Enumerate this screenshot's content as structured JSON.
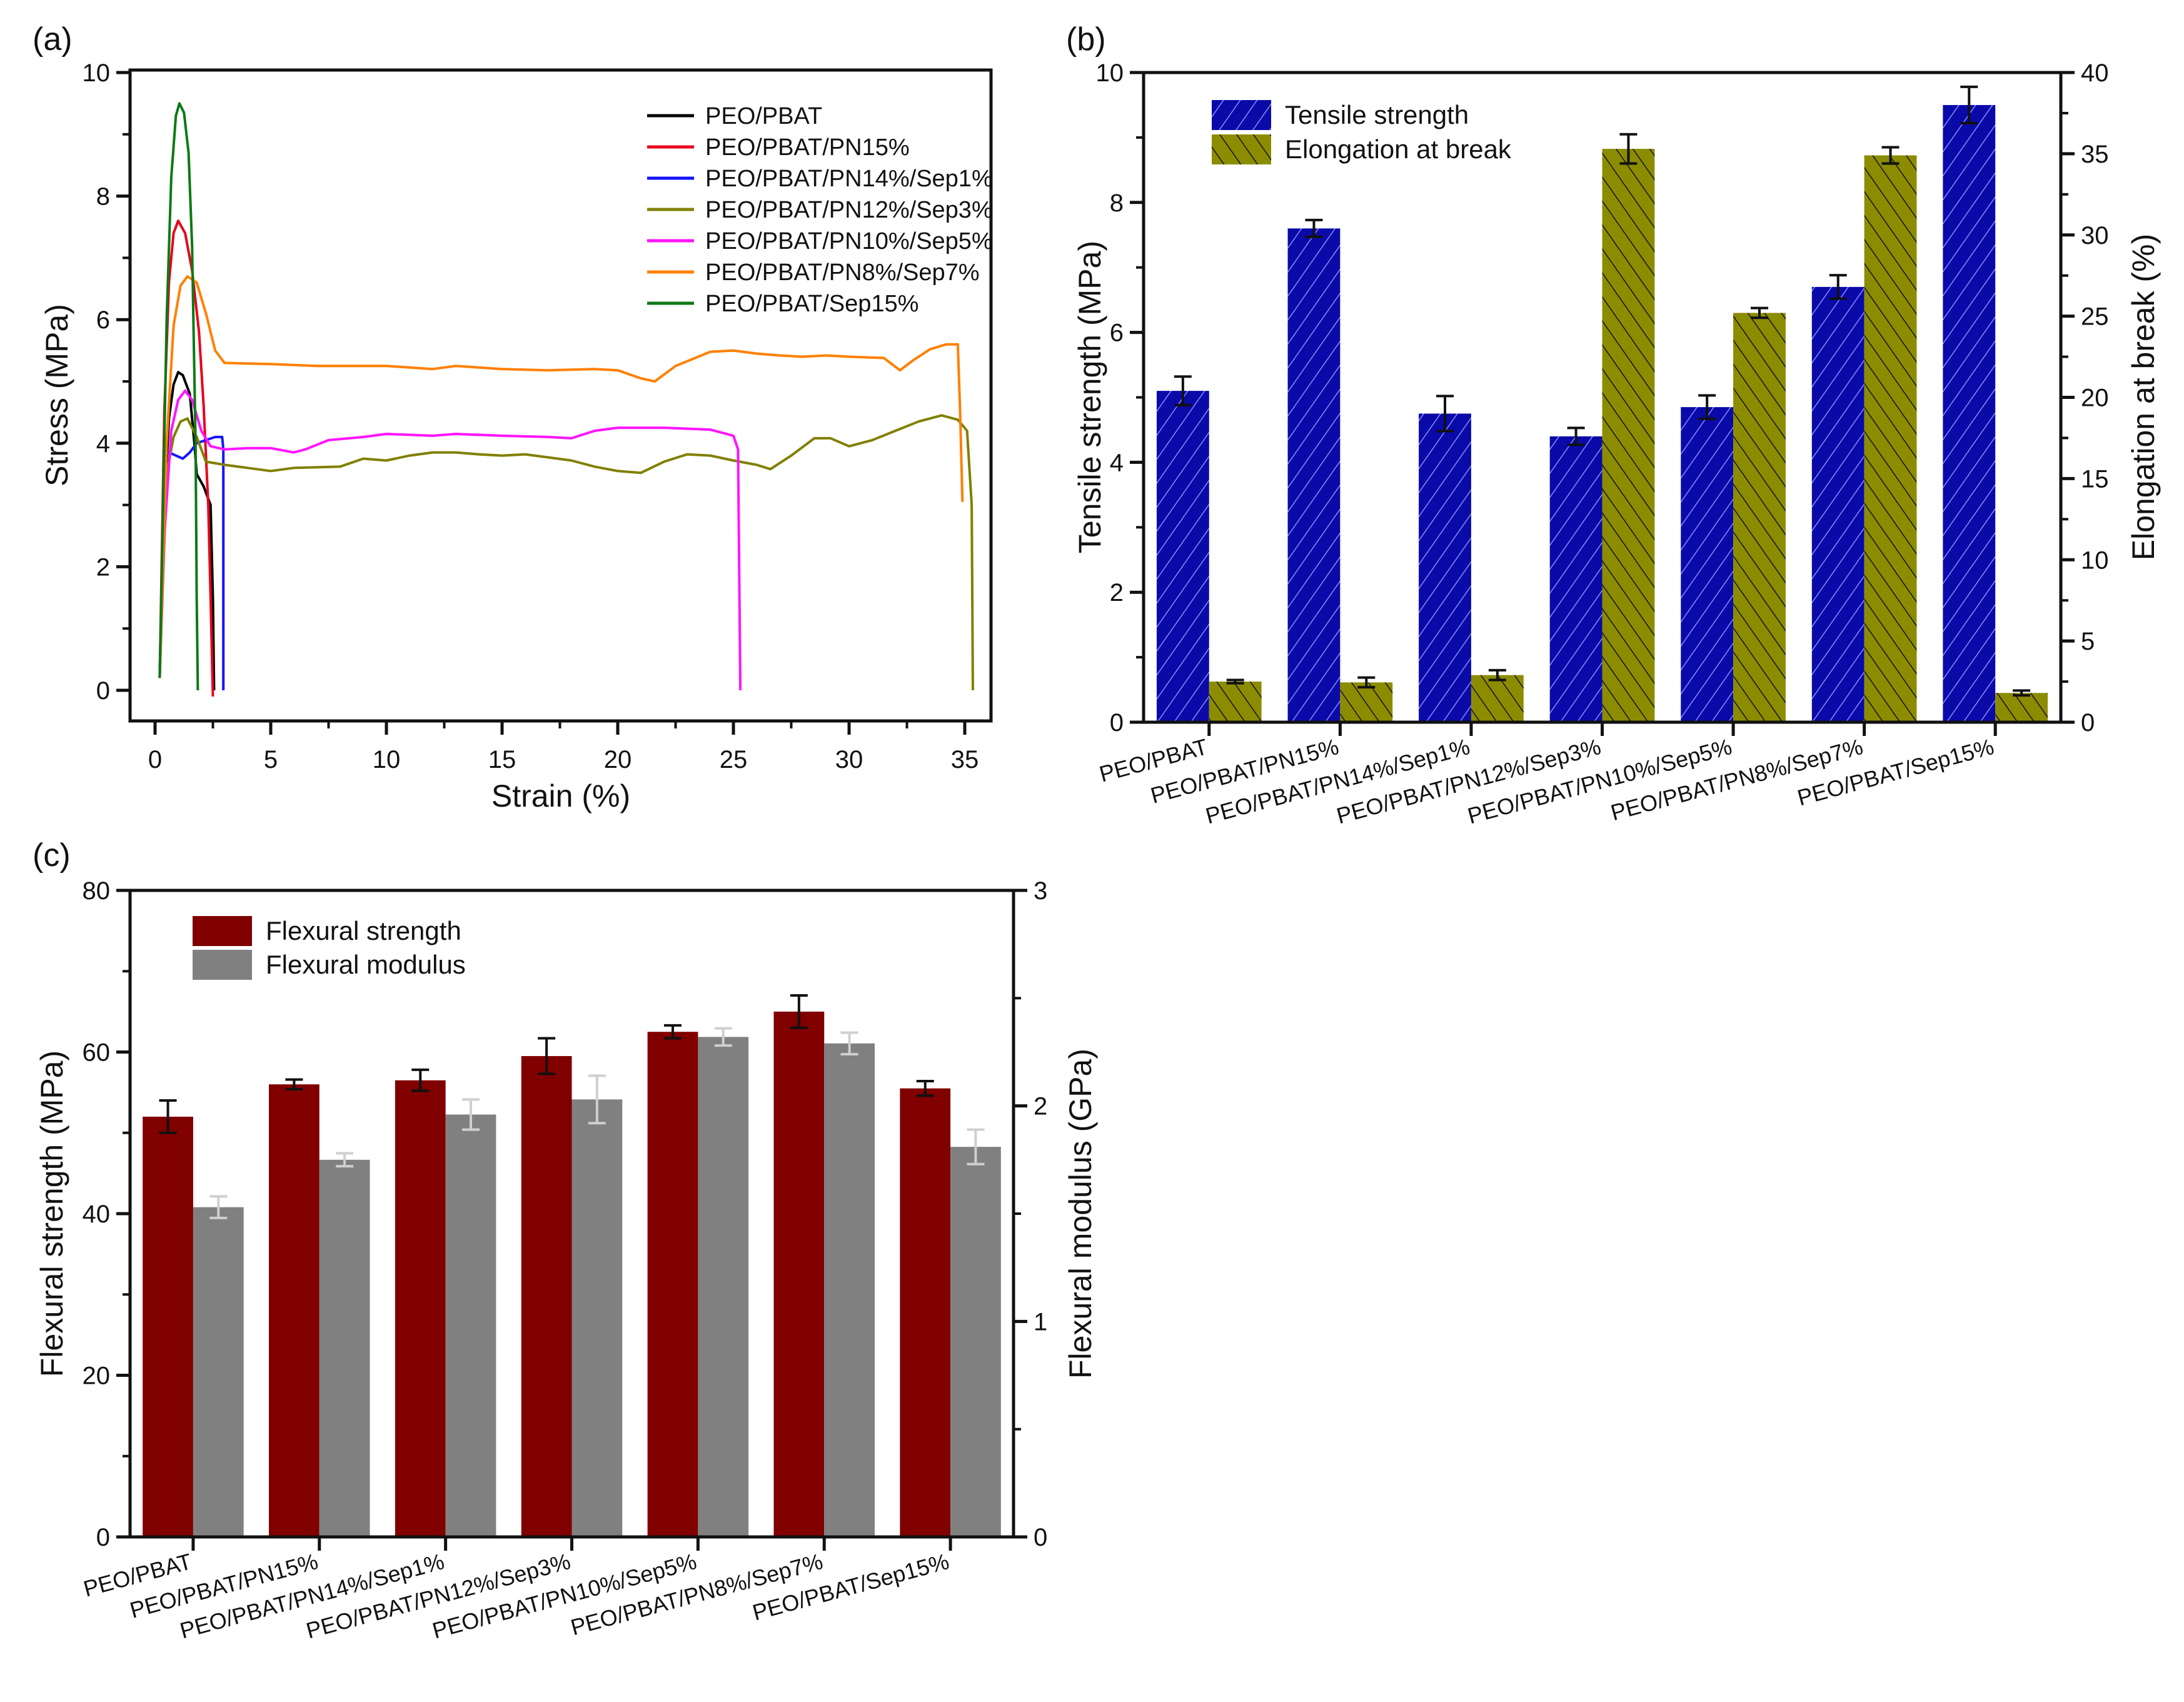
{
  "chart_data": [
    {
      "panel": "(a)",
      "type": "line",
      "title": "",
      "xlabel": "Strain (%)",
      "ylabel": "Stress (MPa)",
      "xlim": [
        -1,
        36
      ],
      "ylim": [
        -0.4,
        10
      ],
      "xticks": [
        "0",
        "5",
        "10",
        "15",
        "20",
        "25",
        "30",
        "35"
      ],
      "yticks": [
        "0",
        "2",
        "4",
        "6",
        "8",
        "10"
      ],
      "legend_position": "top-right",
      "series": [
        {
          "name": "PEO/PBAT",
          "color": "#000000",
          "points": [
            [
              0.2,
              0.2
            ],
            [
              0.4,
              3.0
            ],
            [
              0.6,
              4.4
            ],
            [
              0.8,
              4.95
            ],
            [
              1.0,
              5.15
            ],
            [
              1.2,
              5.1
            ],
            [
              1.5,
              4.8
            ],
            [
              1.7,
              4.0
            ],
            [
              1.8,
              3.5
            ],
            [
              2.1,
              3.3
            ],
            [
              2.4,
              3.0
            ],
            [
              2.5,
              1.5
            ],
            [
              2.55,
              0
            ]
          ]
        },
        {
          "name": "PEO/PBAT/PN15%",
          "color": "#e8001c",
          "points": [
            [
              0.2,
              0.2
            ],
            [
              0.4,
              4.5
            ],
            [
              0.6,
              6.6
            ],
            [
              0.8,
              7.4
            ],
            [
              1.0,
              7.6
            ],
            [
              1.3,
              7.4
            ],
            [
              1.6,
              6.8
            ],
            [
              1.9,
              5.8
            ],
            [
              2.1,
              4.6
            ],
            [
              2.3,
              3.0
            ],
            [
              2.4,
              1.5
            ],
            [
              2.5,
              -0.1
            ]
          ]
        },
        {
          "name": "PEO/PBAT/PN14%/Sep1%",
          "color": "#1414ff",
          "points": [
            [
              0.2,
              0.2
            ],
            [
              0.3,
              2.0
            ],
            [
              0.4,
              3.8
            ],
            [
              0.6,
              3.85
            ],
            [
              0.9,
              3.8
            ],
            [
              1.2,
              3.75
            ],
            [
              1.5,
              3.85
            ],
            [
              1.8,
              4.0
            ],
            [
              2.2,
              4.05
            ],
            [
              2.6,
              4.1
            ],
            [
              2.9,
              4.1
            ],
            [
              2.95,
              3.9
            ],
            [
              2.95,
              0
            ]
          ]
        },
        {
          "name": "PEO/PBAT/PN12%/Sep3%",
          "color": "#808000",
          "points": [
            [
              0.2,
              0.2
            ],
            [
              0.5,
              3.5
            ],
            [
              0.8,
              4.1
            ],
            [
              1.1,
              4.35
            ],
            [
              1.4,
              4.4
            ],
            [
              1.8,
              4.1
            ],
            [
              2.2,
              3.7
            ],
            [
              3,
              3.65
            ],
            [
              4,
              3.6
            ],
            [
              5,
              3.55
            ],
            [
              6,
              3.6
            ],
            [
              8,
              3.62
            ],
            [
              9,
              3.75
            ],
            [
              10,
              3.72
            ],
            [
              11,
              3.8
            ],
            [
              12,
              3.85
            ],
            [
              13,
              3.85
            ],
            [
              14,
              3.82
            ],
            [
              15,
              3.8
            ],
            [
              16,
              3.82
            ],
            [
              18,
              3.72
            ],
            [
              19,
              3.62
            ],
            [
              20,
              3.55
            ],
            [
              21,
              3.52
            ],
            [
              22,
              3.7
            ],
            [
              23,
              3.82
            ],
            [
              24,
              3.8
            ],
            [
              25,
              3.72
            ],
            [
              26,
              3.65
            ],
            [
              26.6,
              3.58
            ],
            [
              27.5,
              3.8
            ],
            [
              28.5,
              4.08
            ],
            [
              29.2,
              4.08
            ],
            [
              30,
              3.95
            ],
            [
              31,
              4.05
            ],
            [
              32,
              4.2
            ],
            [
              33,
              4.35
            ],
            [
              34,
              4.45
            ],
            [
              34.7,
              4.38
            ],
            [
              35.1,
              4.2
            ],
            [
              35.3,
              3.0
            ],
            [
              35.35,
              0
            ]
          ]
        },
        {
          "name": "PEO/PBAT/PN10%/Sep5%",
          "color": "#ff14ff",
          "points": [
            [
              0.2,
              0.2
            ],
            [
              0.4,
              2.5
            ],
            [
              0.7,
              4.2
            ],
            [
              1.0,
              4.7
            ],
            [
              1.3,
              4.85
            ],
            [
              1.6,
              4.7
            ],
            [
              2.0,
              4.2
            ],
            [
              2.4,
              3.95
            ],
            [
              3,
              3.9
            ],
            [
              4,
              3.92
            ],
            [
              5,
              3.92
            ],
            [
              6,
              3.85
            ],
            [
              6.5,
              3.9
            ],
            [
              7.5,
              4.05
            ],
            [
              9,
              4.1
            ],
            [
              10,
              4.15
            ],
            [
              12,
              4.12
            ],
            [
              13,
              4.15
            ],
            [
              15,
              4.12
            ],
            [
              17,
              4.1
            ],
            [
              18,
              4.08
            ],
            [
              19,
              4.2
            ],
            [
              20,
              4.25
            ],
            [
              22,
              4.25
            ],
            [
              24,
              4.22
            ],
            [
              25,
              4.12
            ],
            [
              25.2,
              3.9
            ],
            [
              25.3,
              0
            ]
          ]
        },
        {
          "name": "PEO/PBAT/PN8%/Sep7%",
          "color": "#ff8000",
          "points": [
            [
              0.2,
              0.2
            ],
            [
              0.5,
              4.0
            ],
            [
              0.8,
              5.9
            ],
            [
              1.1,
              6.55
            ],
            [
              1.4,
              6.7
            ],
            [
              1.8,
              6.6
            ],
            [
              2.2,
              6.1
            ],
            [
              2.6,
              5.5
            ],
            [
              3,
              5.3
            ],
            [
              5,
              5.28
            ],
            [
              7,
              5.25
            ],
            [
              10,
              5.25
            ],
            [
              12,
              5.2
            ],
            [
              13,
              5.25
            ],
            [
              15,
              5.2
            ],
            [
              17,
              5.18
            ],
            [
              19,
              5.2
            ],
            [
              20,
              5.18
            ],
            [
              21,
              5.05
            ],
            [
              21.6,
              5.0
            ],
            [
              22.5,
              5.25
            ],
            [
              24,
              5.48
            ],
            [
              25,
              5.5
            ],
            [
              26,
              5.45
            ],
            [
              27,
              5.42
            ],
            [
              28,
              5.4
            ],
            [
              29,
              5.42
            ],
            [
              30,
              5.4
            ],
            [
              31.5,
              5.38
            ],
            [
              32.2,
              5.18
            ],
            [
              32.8,
              5.35
            ],
            [
              33.5,
              5.52
            ],
            [
              34.2,
              5.6
            ],
            [
              34.7,
              5.6
            ],
            [
              34.8,
              4.5
            ],
            [
              34.9,
              3.05
            ]
          ]
        },
        {
          "name": "PEO/PBAT/Sep15%",
          "color": "#0a7a14",
          "points": [
            [
              0.2,
              0.2
            ],
            [
              0.35,
              3.0
            ],
            [
              0.5,
              6.0
            ],
            [
              0.7,
              8.3
            ],
            [
              0.9,
              9.3
            ],
            [
              1.05,
              9.5
            ],
            [
              1.25,
              9.35
            ],
            [
              1.45,
              8.7
            ],
            [
              1.6,
              7.2
            ],
            [
              1.75,
              4.0
            ],
            [
              1.8,
              1.5
            ],
            [
              1.85,
              0
            ]
          ]
        }
      ]
    },
    {
      "panel": "(b)",
      "type": "bar",
      "title": "",
      "xlabel": "",
      "ylabel": "Tensile strength (MPa)",
      "y2label": "Elongation at break (%)",
      "ylim": [
        0,
        10
      ],
      "y2lim": [
        0,
        40
      ],
      "yticks": [
        "0",
        "2",
        "4",
        "6",
        "8",
        "10"
      ],
      "y2ticks": [
        "0",
        "5",
        "10",
        "15",
        "20",
        "25",
        "30",
        "35",
        "40"
      ],
      "legend_position": "top-left",
      "categories": [
        "PEO/PBAT",
        "PEO/PBAT/PN15%",
        "PEO/PBAT/PN14%/Sep1%",
        "PEO/PBAT/PN12%/Sep3%",
        "PEO/PBAT/PN10%/Sep5%",
        "PEO/PBAT/PN8%/Sep7%",
        "PEO/PBAT/Sep15%"
      ],
      "series": [
        {
          "name": "Tensile strength",
          "axis": "left",
          "color": "#0a0aa8",
          "values": [
            5.1,
            7.6,
            4.75,
            4.4,
            4.85,
            6.7,
            9.5
          ],
          "errors": [
            0.22,
            0.13,
            0.27,
            0.13,
            0.18,
            0.18,
            0.28
          ]
        },
        {
          "name": "Elongation at break",
          "axis": "right",
          "color": "#8c8c00",
          "values": [
            2.5,
            2.45,
            2.9,
            35.3,
            25.2,
            34.9,
            1.8
          ],
          "errors": [
            0.1,
            0.3,
            0.3,
            0.9,
            0.3,
            0.5,
            0.15
          ]
        }
      ]
    },
    {
      "panel": "(c)",
      "type": "bar",
      "title": "",
      "xlabel": "",
      "ylabel": "Flexural strength (MPa)",
      "y2label": "Flexural modulus (GPa)",
      "ylim": [
        0,
        80
      ],
      "y2lim": [
        0,
        3
      ],
      "yticks": [
        "0",
        "20",
        "40",
        "60",
        "80"
      ],
      "y2ticks": [
        "0",
        "1",
        "2",
        "3"
      ],
      "legend_position": "top-left",
      "categories": [
        "PEO/PBAT",
        "PEO/PBAT/PN15%",
        "PEO/PBAT/PN14%/Sep1%",
        "PEO/PBAT/PN12%/Sep3%",
        "PEO/PBAT/PN10%/Sep5%",
        "PEO/PBAT/PN8%/Sep7%",
        "PEO/PBAT/Sep15%"
      ],
      "series": [
        {
          "name": "Flexural strength",
          "axis": "left",
          "color": "#800000",
          "values": [
            52,
            56,
            56.5,
            59.5,
            62.5,
            65,
            55.5
          ],
          "errors": [
            2.0,
            0.6,
            1.3,
            2.2,
            0.8,
            2.0,
            0.9
          ]
        },
        {
          "name": "Flexural modulus",
          "axis": "right",
          "color": "#808080",
          "values": [
            1.53,
            1.75,
            1.96,
            2.03,
            2.32,
            2.29,
            1.81
          ],
          "errors": [
            0.05,
            0.03,
            0.07,
            0.11,
            0.04,
            0.05,
            0.08
          ]
        }
      ]
    }
  ]
}
